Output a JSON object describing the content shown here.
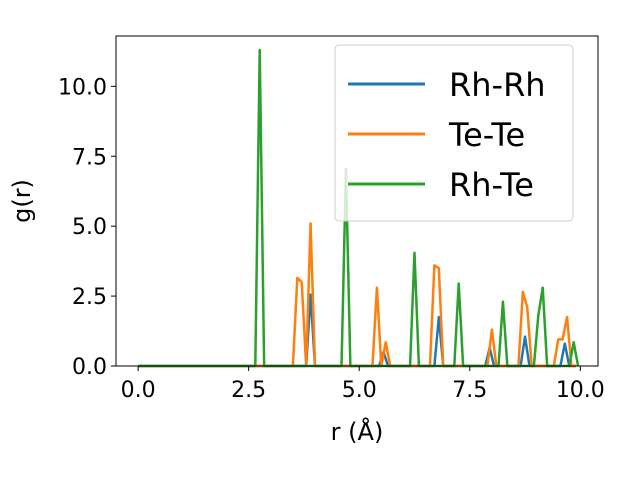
{
  "chart_data": {
    "type": "line",
    "title": "",
    "xlabel": "r (Å)",
    "ylabel": "g(r)",
    "xlim": [
      -0.5,
      10.4
    ],
    "ylim": [
      0.0,
      11.8
    ],
    "xticks": [
      0.0,
      2.5,
      5.0,
      7.5,
      10.0
    ],
    "xtick_labels": [
      "0.0",
      "2.5",
      "5.0",
      "7.5",
      "10.0"
    ],
    "yticks": [
      0.0,
      2.5,
      5.0,
      7.5,
      10.0
    ],
    "ytick_labels": [
      "0.0",
      "2.5",
      "5.0",
      "7.5",
      "10.0"
    ],
    "grid": false,
    "legend_position": "top-right",
    "series": [
      {
        "name": "Rh-Rh",
        "color": "#1f77b4",
        "points": [
          [
            0.0,
            0
          ],
          [
            3.8,
            0
          ],
          [
            3.9,
            2.55
          ],
          [
            4.0,
            0
          ],
          [
            5.45,
            0
          ],
          [
            5.55,
            0.5
          ],
          [
            5.65,
            0
          ],
          [
            6.7,
            0
          ],
          [
            6.8,
            1.75
          ],
          [
            6.9,
            0
          ],
          [
            7.85,
            0
          ],
          [
            7.95,
            0.65
          ],
          [
            8.05,
            0
          ],
          [
            8.65,
            0
          ],
          [
            8.75,
            1.05
          ],
          [
            8.85,
            0
          ],
          [
            9.55,
            0
          ],
          [
            9.65,
            0.8
          ],
          [
            9.75,
            0
          ],
          [
            9.9,
            0
          ]
        ]
      },
      {
        "name": "Te-Te",
        "color": "#ff7f0e",
        "points": [
          [
            0.0,
            0
          ],
          [
            3.5,
            0
          ],
          [
            3.6,
            3.15
          ],
          [
            3.7,
            3.0
          ],
          [
            3.8,
            0
          ],
          [
            3.9,
            5.1
          ],
          [
            4.0,
            0
          ],
          [
            5.3,
            0
          ],
          [
            5.4,
            2.8
          ],
          [
            5.5,
            0
          ],
          [
            5.6,
            0.85
          ],
          [
            5.7,
            0
          ],
          [
            6.6,
            0
          ],
          [
            6.7,
            3.6
          ],
          [
            6.8,
            3.5
          ],
          [
            6.9,
            0
          ],
          [
            7.9,
            0
          ],
          [
            8.0,
            1.3
          ],
          [
            8.1,
            0
          ],
          [
            8.6,
            0
          ],
          [
            8.7,
            2.65
          ],
          [
            8.8,
            2.1
          ],
          [
            8.9,
            0
          ],
          [
            9.4,
            0
          ],
          [
            9.5,
            0.95
          ],
          [
            9.6,
            0.95
          ],
          [
            9.7,
            1.75
          ],
          [
            9.8,
            0
          ],
          [
            9.9,
            0
          ]
        ]
      },
      {
        "name": "Rh-Te",
        "color": "#2ca02c",
        "points": [
          [
            0.0,
            0
          ],
          [
            2.65,
            0
          ],
          [
            2.75,
            11.3
          ],
          [
            2.85,
            0
          ],
          [
            4.6,
            0
          ],
          [
            4.7,
            7.05
          ],
          [
            4.8,
            0
          ],
          [
            6.15,
            0
          ],
          [
            6.25,
            4.05
          ],
          [
            6.35,
            0
          ],
          [
            7.15,
            0
          ],
          [
            7.25,
            2.95
          ],
          [
            7.35,
            0
          ],
          [
            8.15,
            0
          ],
          [
            8.25,
            2.3
          ],
          [
            8.35,
            0
          ],
          [
            8.95,
            0
          ],
          [
            9.05,
            1.8
          ],
          [
            9.15,
            2.8
          ],
          [
            9.25,
            0
          ],
          [
            9.75,
            0
          ],
          [
            9.85,
            0.85
          ],
          [
            9.95,
            0
          ]
        ]
      }
    ]
  }
}
